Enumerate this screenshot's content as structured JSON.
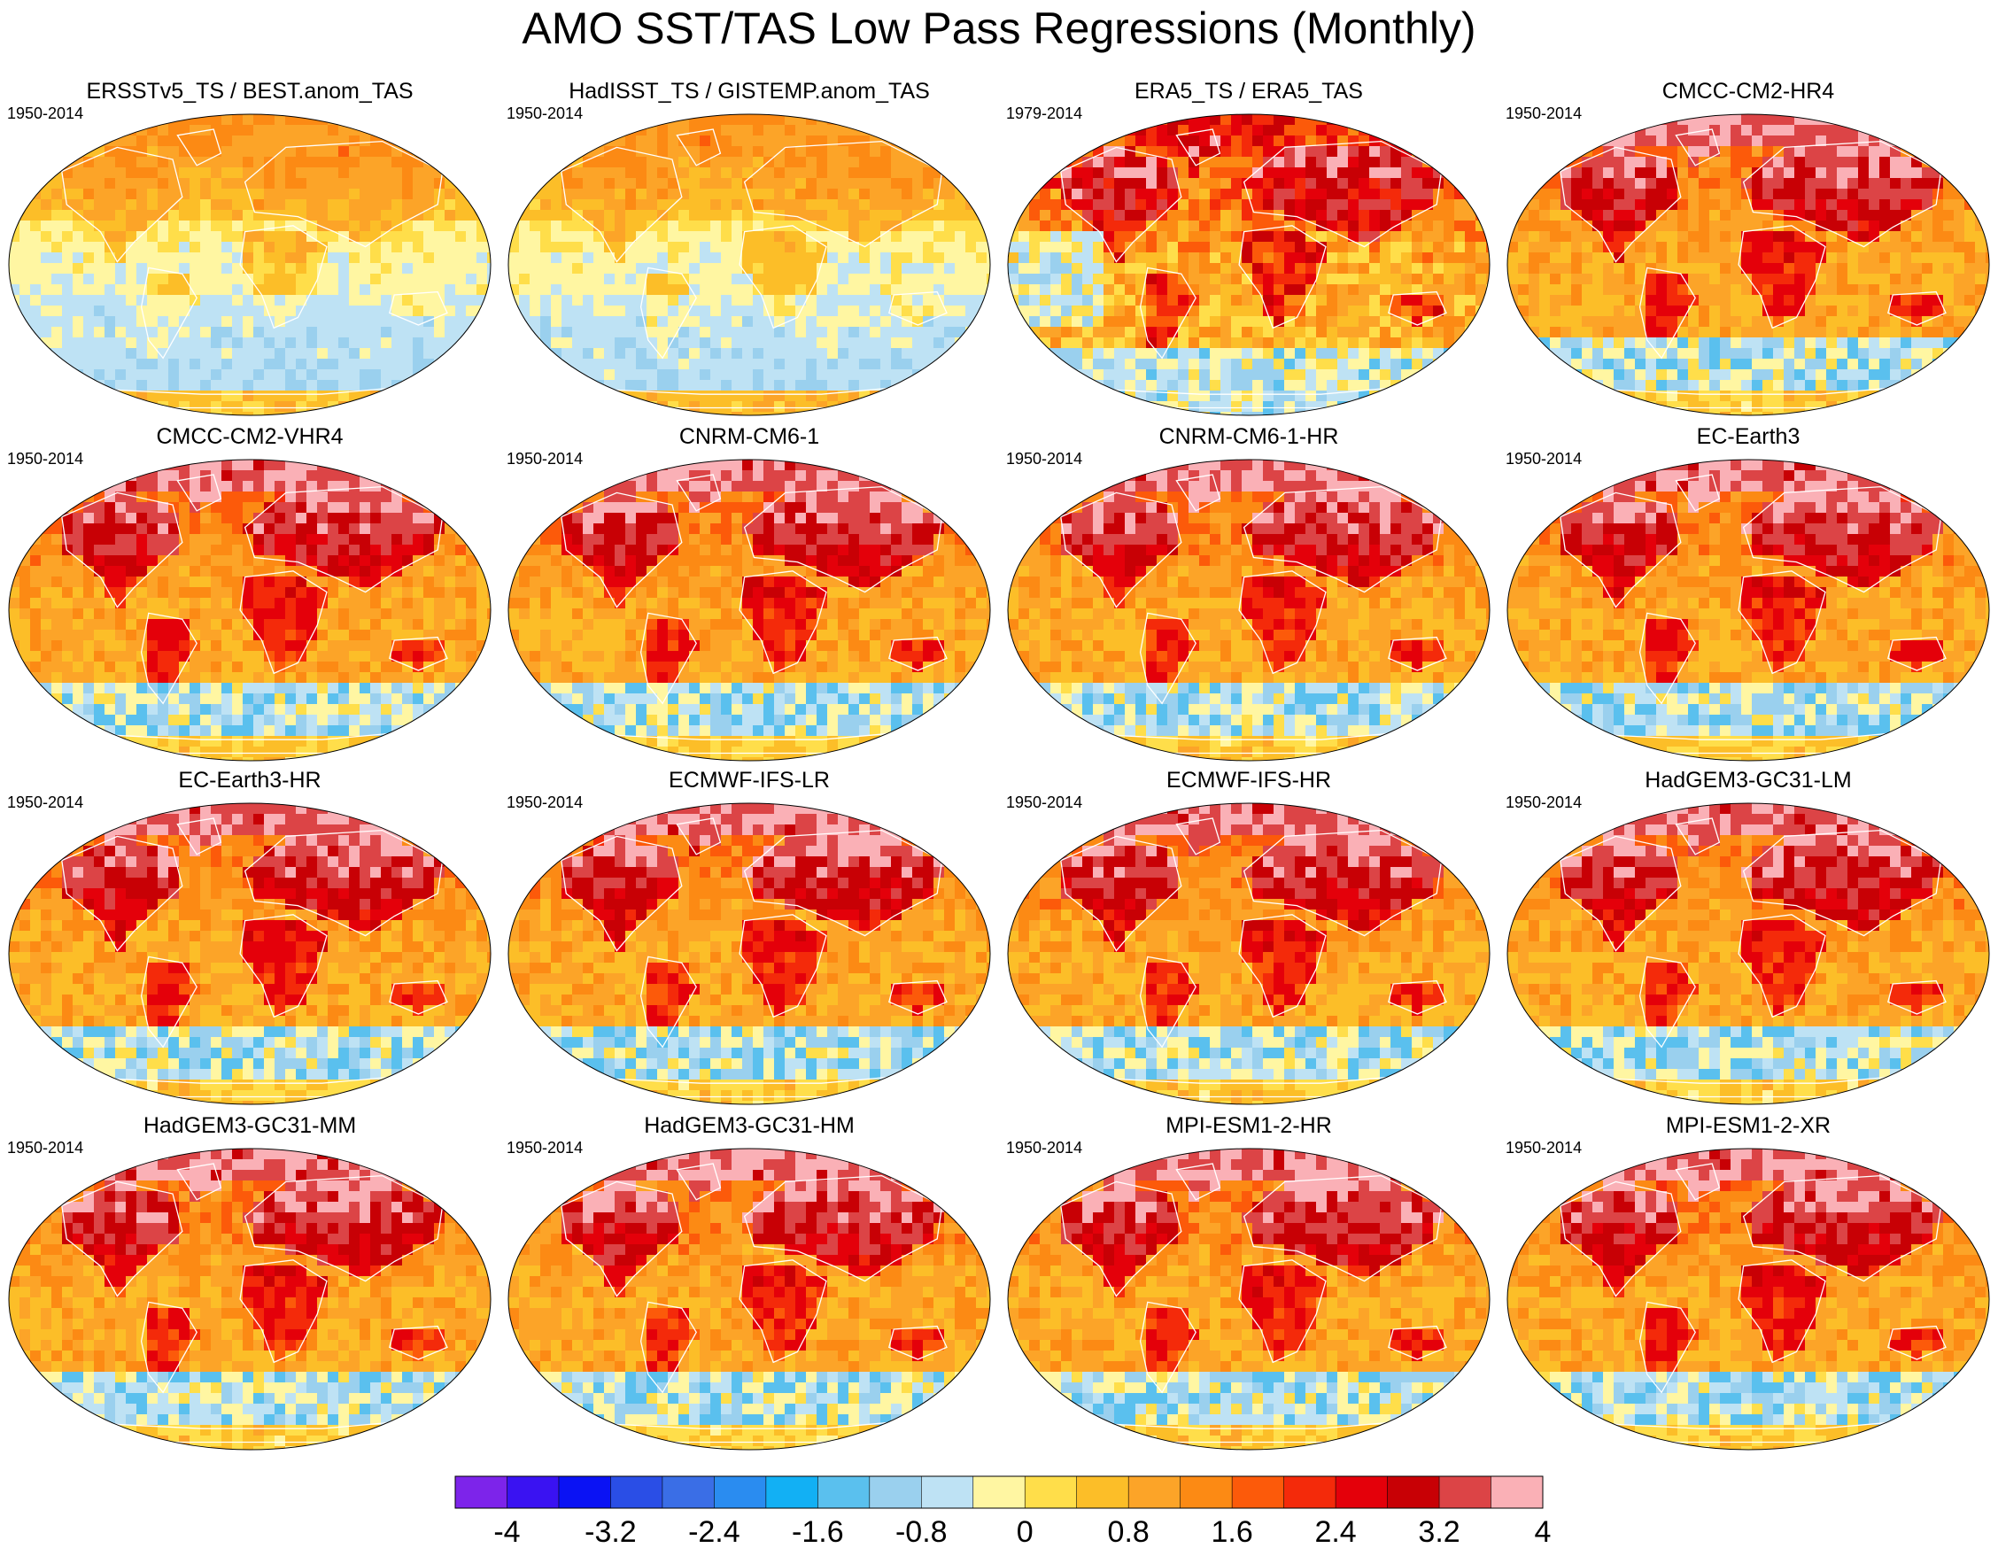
{
  "title": "AMO SST/TAS Low Pass Regressions (Monthly)",
  "panels": [
    {
      "title": "ERSSTv5_TS / BEST.anom_TAS",
      "period": "1950-2014",
      "pattern": "obs"
    },
    {
      "title": "HadISST_TS / GISTEMP.anom_TAS",
      "period": "1950-2014",
      "pattern": "obs"
    },
    {
      "title": "ERA5_TS / ERA5_TAS",
      "period": "1979-2014",
      "pattern": "reanalysis"
    },
    {
      "title": "CMCC-CM2-HR4",
      "period": "1950-2014",
      "pattern": "model"
    },
    {
      "title": "CMCC-CM2-VHR4",
      "period": "1950-2014",
      "pattern": "model"
    },
    {
      "title": "CNRM-CM6-1",
      "period": "1950-2014",
      "pattern": "model"
    },
    {
      "title": "CNRM-CM6-1-HR",
      "period": "1950-2014",
      "pattern": "model"
    },
    {
      "title": "EC-Earth3",
      "period": "1950-2014",
      "pattern": "model"
    },
    {
      "title": "EC-Earth3-HR",
      "period": "1950-2014",
      "pattern": "model"
    },
    {
      "title": "ECMWF-IFS-LR",
      "period": "1950-2014",
      "pattern": "model"
    },
    {
      "title": "ECMWF-IFS-HR",
      "period": "1950-2014",
      "pattern": "model"
    },
    {
      "title": "HadGEM3-GC31-LM",
      "period": "1950-2014",
      "pattern": "model"
    },
    {
      "title": "HadGEM3-GC31-MM",
      "period": "1950-2014",
      "pattern": "model"
    },
    {
      "title": "HadGEM3-GC31-HM",
      "period": "1950-2014",
      "pattern": "model"
    },
    {
      "title": "MPI-ESM1-2-HR",
      "period": "1950-2014",
      "pattern": "model"
    },
    {
      "title": "MPI-ESM1-2-XR",
      "period": "1950-2014",
      "pattern": "model"
    }
  ],
  "colorbar": {
    "colors": [
      "#7d24ea",
      "#3a12f2",
      "#0a12f4",
      "#2a4ee6",
      "#3a6ee6",
      "#2a8cf0",
      "#12b0f4",
      "#5ac0ee",
      "#9ad0ee",
      "#bee2f4",
      "#fff6a2",
      "#ffde4a",
      "#fcbe28",
      "#fca428",
      "#fc8a14",
      "#fc5a0a",
      "#f42a0a",
      "#e4000a",
      "#c80005",
      "#dc4446",
      "#fab0b6"
    ],
    "tick_labels": [
      "-4",
      "-3.2",
      "-2.4",
      "-1.6",
      "-0.8",
      "0",
      "0.8",
      "1.6",
      "2.4",
      "3.2",
      "4"
    ],
    "tick_values": [
      -4,
      -3.2,
      -2.4,
      -1.6,
      -0.8,
      0,
      0.8,
      1.6,
      2.4,
      3.2,
      4
    ]
  }
}
